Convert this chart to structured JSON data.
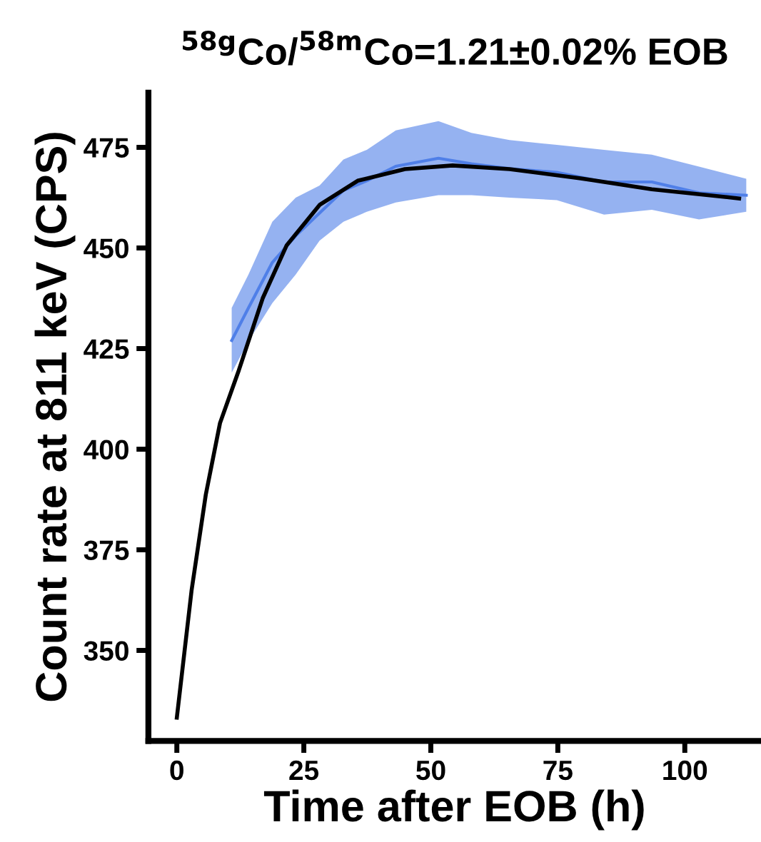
{
  "chart_data": {
    "type": "line",
    "title": "$^{58g}$Co/$^{58m}$Co=1.21±0.02% EOB",
    "xlabel": "Time after EOB (h)",
    "ylabel": "Count rate at 811 keV (CPS)",
    "xlim": [
      -5.6,
      115
    ],
    "ylim": [
      327.5,
      488.6
    ],
    "xticks": [
      0,
      25,
      50,
      75,
      100
    ],
    "yticks": [
      350,
      375,
      400,
      425,
      450,
      475
    ],
    "grid": false,
    "legend": false,
    "marker": "none",
    "line_style": "solid",
    "series": [
      {
        "color": "#4f7fe8",
        "x": [
          10.8,
          14.1,
          18.8,
          23.4,
          28.1,
          32.8,
          37.4,
          43.1,
          51.5,
          58.0,
          65.5,
          74.8,
          84.1,
          93.5,
          102.8,
          112.1
        ],
        "values": [
          427,
          435.1,
          446.4,
          453,
          458.7,
          464.3,
          466.7,
          470.3,
          472.3,
          470.9,
          469.7,
          468.8,
          466.4,
          466.4,
          463.7,
          463.1
        ],
        "lower": [
          419,
          426.8,
          436.3,
          443.4,
          451.8,
          456.5,
          459,
          461.3,
          463.1,
          463.1,
          462.5,
          461.9,
          458.3,
          459.5,
          457.1,
          459
        ],
        "upper": [
          435.1,
          443.4,
          456.5,
          462.5,
          465.5,
          472,
          474.4,
          479.2,
          481.5,
          478.6,
          476.8,
          475.6,
          474.4,
          473.2,
          470.2,
          467.2
        ]
      },
      {
        "color": "#000000",
        "x": [
          0,
          2.9,
          5.7,
          8.5,
          12.2,
          16.9,
          21.6,
          28.1,
          35.6,
          44.9,
          54.3,
          65.5,
          79.5,
          93.5,
          110.7
        ],
        "values": [
          333.3,
          364.9,
          388.7,
          406.5,
          419.6,
          437.5,
          450.6,
          460.7,
          466.7,
          469.6,
          470.5,
          469.6,
          467.3,
          464.6,
          462.3
        ]
      }
    ]
  }
}
